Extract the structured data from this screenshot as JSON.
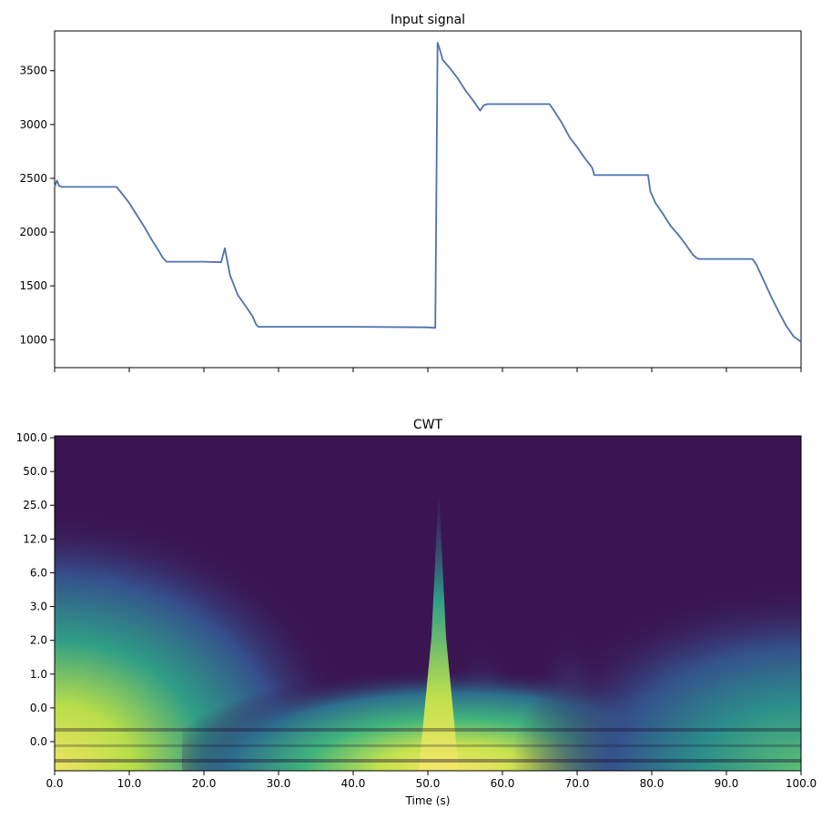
{
  "colors": {
    "line": "#4c72b0",
    "cwt_background": "#3a1551",
    "cwt_mid": "#3b5289",
    "cwt_teal": "#2b9a8a",
    "cwt_green": "#8ed26a",
    "cwt_yellow": "#f0e463"
  },
  "chart_data": [
    {
      "type": "line",
      "title": "Input signal",
      "xlabel": "",
      "ylabel": "",
      "xlim": [
        0,
        100
      ],
      "ylim": [
        740,
        3870
      ],
      "yticks": [
        1000,
        1500,
        2000,
        2500,
        3000,
        3500
      ],
      "xticks_count": 11,
      "grid": false,
      "series": [
        {
          "x": [
            0,
            0.3,
            0.6,
            1,
            5,
            8.3,
            9,
            10,
            11,
            12,
            13,
            14,
            14.5,
            15,
            20,
            22.3,
            22.8,
            23.5,
            24.5,
            25.5,
            26.5,
            27,
            27.3,
            30,
            40,
            50,
            51,
            51.3,
            51.6,
            52,
            53,
            54,
            55,
            56,
            57,
            57.5,
            58,
            62,
            65,
            66.3,
            67,
            68,
            69,
            70,
            71,
            72,
            72.3,
            75,
            79.5,
            79.8,
            80.5,
            81.5,
            82.5,
            83.5,
            84.5,
            85.5,
            86,
            86.3,
            90,
            93.5,
            94,
            95,
            96,
            97,
            98,
            99,
            100
          ],
          "y": [
            2420,
            2480,
            2430,
            2420,
            2420,
            2420,
            2360,
            2270,
            2160,
            2050,
            1930,
            1820,
            1760,
            1725,
            1725,
            1720,
            1850,
            1600,
            1420,
            1320,
            1220,
            1140,
            1120,
            1120,
            1120,
            1115,
            1110,
            3760,
            3700,
            3600,
            3520,
            3430,
            3320,
            3230,
            3130,
            3180,
            3190,
            3190,
            3190,
            3190,
            3120,
            3010,
            2880,
            2790,
            2690,
            2600,
            2530,
            2530,
            2530,
            2380,
            2270,
            2170,
            2060,
            1980,
            1890,
            1790,
            1760,
            1750,
            1750,
            1750,
            1700,
            1550,
            1400,
            1260,
            1130,
            1030,
            980
          ]
        }
      ]
    },
    {
      "type": "heatmap",
      "title": "CWT",
      "xlabel": "Time (s)",
      "ylabel": "",
      "xlim": [
        0,
        100
      ],
      "xticks": [
        "0.0",
        "10.0",
        "20.0",
        "30.0",
        "40.0",
        "50.0",
        "60.0",
        "70.0",
        "80.0",
        "90.0",
        "100.0"
      ],
      "yticks": [
        "100.0",
        "50.0",
        "25.0",
        "12.0",
        "6.0",
        "3.0",
        "2.0",
        "1.0",
        "0.0",
        "0.0"
      ],
      "colormap": "viridis"
    }
  ]
}
